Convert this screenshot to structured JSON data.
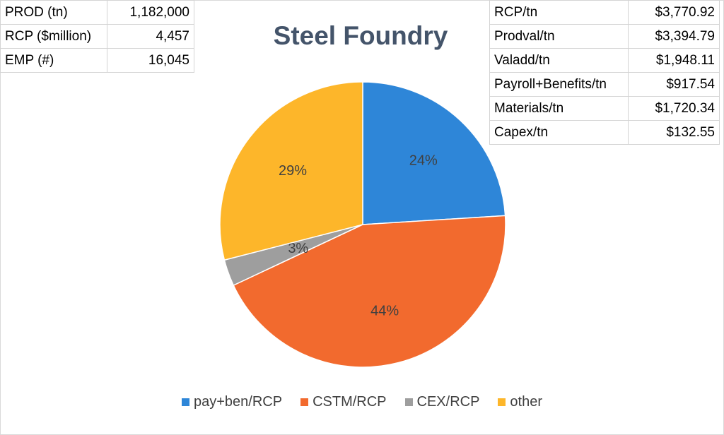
{
  "left_table": [
    {
      "label": "PROD (tn)",
      "value": "1,182,000"
    },
    {
      "label": "RCP ($million)",
      "value": "4,457"
    },
    {
      "label": "EMP (#)",
      "value": "16,045"
    }
  ],
  "right_table": [
    {
      "label": "RCP/tn",
      "value": "$3,770.92"
    },
    {
      "label": "Prodval/tn",
      "value": "$3,394.79"
    },
    {
      "label": "Valadd/tn",
      "value": "$1,948.11"
    },
    {
      "label": "Payroll+Benefits/tn",
      "value": "$917.54"
    },
    {
      "label": "Materials/tn",
      "value": "$1,720.34"
    },
    {
      "label": "Capex/tn",
      "value": "$132.55"
    }
  ],
  "chart_data": {
    "type": "pie",
    "title": "Steel Foundry",
    "categories": [
      "pay+ben/RCP",
      "CSTM/RCP",
      "CEX/RCP",
      "other"
    ],
    "values": [
      24,
      44,
      3,
      29
    ],
    "data_labels": [
      "24%",
      "44%",
      "3%",
      "29%"
    ],
    "colors": [
      "#2e86d8",
      "#f26a2e",
      "#9e9e9e",
      "#fdb62a"
    ],
    "legend_position": "bottom"
  }
}
